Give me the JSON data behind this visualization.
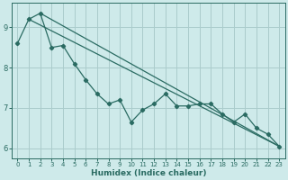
{
  "title": "",
  "xlabel": "Humidex (Indice chaleur)",
  "ylabel": "",
  "background_color": "#ceeaea",
  "grid_color": "#aacccc",
  "line_color": "#2a6b62",
  "xlim": [
    -0.5,
    23.5
  ],
  "ylim": [
    5.75,
    9.6
  ],
  "yticks": [
    6,
    7,
    8,
    9
  ],
  "xticks": [
    0,
    1,
    2,
    3,
    4,
    5,
    6,
    7,
    8,
    9,
    10,
    11,
    12,
    13,
    14,
    15,
    16,
    17,
    18,
    19,
    20,
    21,
    22,
    23
  ],
  "line1_x": [
    0,
    1,
    2,
    3,
    4,
    5,
    6,
    7,
    8,
    9,
    10,
    11,
    12,
    13,
    14,
    15,
    16,
    17,
    18,
    19,
    20,
    21,
    22,
    23
  ],
  "line1_y": [
    8.6,
    9.2,
    9.35,
    8.5,
    8.55,
    8.1,
    7.7,
    7.35,
    7.1,
    7.2,
    6.65,
    6.95,
    7.1,
    7.35,
    7.05,
    7.05,
    7.1,
    7.1,
    6.85,
    6.65,
    6.85,
    6.5,
    6.35,
    6.05
  ],
  "line2_x": [
    1,
    23
  ],
  "line2_y": [
    9.2,
    6.05
  ],
  "line3_x": [
    2,
    23
  ],
  "line3_y": [
    9.35,
    6.05
  ]
}
